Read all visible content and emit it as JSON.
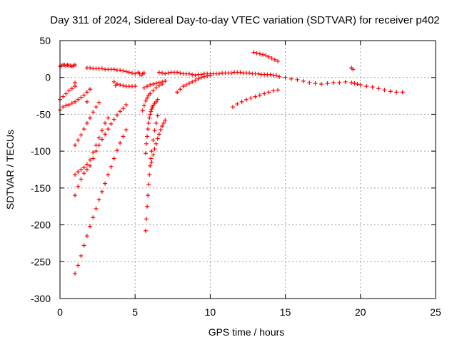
{
  "chart_data": {
    "type": "scatter",
    "title": "Day 311 of 2024, Sidereal Day-to-day VTEC variation (SDTVAR) for receiver p402",
    "xlabel": "GPS time / hours",
    "ylabel": "SDTVAR / TECUs",
    "xlim": [
      0,
      25
    ],
    "ylim": [
      -300,
      50
    ],
    "xticks": [
      0,
      5,
      10,
      15,
      20,
      25
    ],
    "yticks": [
      -300,
      -250,
      -200,
      -150,
      -100,
      -50,
      0,
      50
    ],
    "xtick_labels": [
      "0",
      "5",
      "10",
      "15",
      "20",
      "25"
    ],
    "ytick_labels": [
      "-300",
      "-250",
      "-200",
      "-150",
      "-100",
      "-50",
      "0",
      "50"
    ],
    "grid": true,
    "marker": "+",
    "color": "#ff0000",
    "series": [
      {
        "name": "arc-top-left",
        "x": [
          0.0,
          0.1,
          0.2,
          0.3,
          0.4,
          0.5,
          0.6,
          0.7,
          0.8,
          0.9,
          1.0
        ],
        "y": [
          15,
          16,
          17,
          17,
          16,
          17,
          16,
          16,
          15,
          16,
          17
        ]
      },
      {
        "name": "arc-top-a",
        "x": [
          1.8,
          2.0,
          2.2,
          2.4,
          2.6,
          2.8,
          3.0,
          3.2,
          3.4,
          3.6,
          3.8,
          4.0,
          4.2,
          4.4,
          4.6,
          4.8,
          5.0
        ],
        "y": [
          13,
          13,
          12,
          12,
          12,
          12,
          11,
          11,
          11,
          11,
          10,
          10,
          9,
          8,
          7,
          6,
          5
        ]
      },
      {
        "name": "arc-top-b",
        "x": [
          5.2,
          5.3,
          5.4,
          5.5,
          5.6
        ],
        "y": [
          7,
          5,
          3,
          5,
          6
        ]
      },
      {
        "name": "arc-top-c",
        "x": [
          6.6,
          6.8,
          7.0,
          7.2,
          7.4,
          7.6,
          7.8,
          8.0,
          8.2,
          8.4,
          8.6,
          8.8,
          9.0,
          9.2,
          9.4,
          9.6,
          9.8,
          10.0,
          10.2,
          10.4,
          10.6,
          10.8,
          11.0,
          11.2,
          11.4,
          11.6,
          11.8,
          12.0,
          12.2,
          12.4,
          12.6,
          12.8,
          13.0,
          13.2,
          13.4,
          13.6,
          13.8,
          14.0,
          14.2,
          14.4
        ],
        "y": [
          7,
          6,
          5,
          6,
          7,
          7,
          7,
          6,
          5,
          5,
          5,
          4,
          3,
          4,
          4,
          5,
          5,
          5,
          5,
          5,
          5,
          6,
          6,
          6,
          6,
          7,
          7,
          7,
          6,
          6,
          6,
          5,
          5,
          5,
          4,
          4,
          4,
          4,
          3,
          3
        ]
      },
      {
        "name": "arc-rise-peak",
        "x": [
          12.9,
          13.1,
          13.3,
          13.5,
          13.7,
          13.9,
          14.1,
          14.3,
          14.5
        ],
        "y": [
          34,
          33,
          32,
          31,
          30,
          28,
          26,
          24,
          22
        ]
      },
      {
        "name": "arc-right",
        "x": [
          14.6,
          15.0,
          15.4,
          15.8,
          16.2,
          16.6,
          17.0,
          17.4,
          17.8,
          18.2,
          18.6,
          19.0,
          19.4,
          19.6,
          19.8,
          20.0,
          20.4,
          20.8,
          21.2,
          21.6,
          22.0,
          22.4,
          22.8
        ],
        "y": [
          1,
          0,
          -2,
          -3,
          -5,
          -7,
          -8,
          -9,
          -8,
          -7,
          -7,
          -6,
          -7,
          -8,
          -9,
          -10,
          -12,
          -13,
          -15,
          -17,
          -19,
          -20,
          -20
        ]
      },
      {
        "name": "isolated",
        "x": [
          19.4,
          19.5,
          1.0,
          3.7,
          1.8
        ],
        "y": [
          13,
          11,
          -7,
          -11,
          -33
        ]
      },
      {
        "name": "arc-mid-dip",
        "x": [
          3.6,
          3.8,
          4.0,
          4.2,
          4.4,
          4.6,
          4.8,
          5.0
        ],
        "y": [
          -6,
          -9,
          -10,
          -11,
          -12,
          -12,
          -12,
          -12
        ]
      },
      {
        "name": "arc-mid-a",
        "x": [
          5.6,
          5.8,
          6.0,
          6.2,
          6.4,
          6.6,
          6.8,
          7.0
        ],
        "y": [
          -14,
          -12,
          -10,
          -9,
          -8,
          -7,
          -6,
          -5
        ]
      },
      {
        "name": "arc-mid-b",
        "x": [
          7.8,
          8.0,
          8.2,
          8.4,
          8.6,
          8.8,
          9.0,
          9.2,
          9.4,
          9.6,
          9.8,
          10.0
        ],
        "y": [
          -20,
          -16,
          -12,
          -10,
          -8,
          -6,
          -4,
          -2,
          0,
          1,
          2,
          3
        ]
      },
      {
        "name": "arc-low-a",
        "x": [
          0.0,
          0.2,
          0.4,
          0.6,
          0.8,
          1.0,
          1.2,
          1.4,
          1.6,
          1.8,
          2.0
        ],
        "y": [
          -44,
          -40,
          -38,
          -37,
          -35,
          -33,
          -30,
          -27,
          -24,
          -20,
          -16
        ]
      },
      {
        "name": "arc-low-b",
        "x": [
          0.0,
          0.2,
          0.4,
          0.6,
          0.8,
          1.0
        ],
        "y": [
          -30,
          -26,
          -22,
          -18,
          -15,
          -12
        ]
      },
      {
        "name": "arc-low-c",
        "x": [
          11.5,
          11.8,
          12.1,
          12.4,
          12.7,
          13.0,
          13.3,
          13.6,
          13.9,
          14.2,
          14.5
        ],
        "y": [
          -40,
          -36,
          -33,
          -30,
          -28,
          -26,
          -24,
          -22,
          -20,
          -18,
          -17
        ]
      },
      {
        "name": "arc-steep-1",
        "x": [
          1.0,
          1.2,
          1.4,
          1.6,
          1.8,
          2.0,
          2.2,
          2.4,
          2.6
        ],
        "y": [
          -92,
          -85,
          -78,
          -70,
          -62,
          -55,
          -47,
          -40,
          -34
        ]
      },
      {
        "name": "arc-steep-2",
        "x": [
          1.0,
          1.2,
          1.4,
          1.6,
          1.8,
          2.0,
          2.2,
          2.4,
          2.6,
          2.8,
          3.0,
          3.2,
          3.4,
          3.6,
          3.8,
          4.0,
          4.2,
          4.4
        ],
        "y": [
          -160,
          -148,
          -138,
          -130,
          -125,
          -120,
          -110,
          -100,
          -92,
          -84,
          -77,
          -70,
          -63,
          -57,
          -51,
          -46,
          -42,
          -37
        ]
      },
      {
        "name": "arc-steep-3",
        "x": [
          1.0,
          1.2,
          1.4,
          1.6,
          1.8,
          2.0,
          2.2,
          2.4,
          2.6,
          2.8,
          3.0,
          3.2
        ],
        "y": [
          -132,
          -128,
          -125,
          -122,
          -118,
          -112,
          -102,
          -92,
          -82,
          -72,
          -62,
          -55
        ]
      },
      {
        "name": "arc-steep-4",
        "x": [
          1.0,
          1.2,
          1.4,
          1.6,
          1.8,
          2.0,
          2.2,
          2.4,
          2.6,
          2.8,
          3.0,
          3.2,
          3.4,
          3.6,
          3.8,
          4.0,
          4.2,
          4.4
        ],
        "y": [
          -266,
          -255,
          -242,
          -228,
          -215,
          -202,
          -190,
          -178,
          -166,
          -155,
          -144,
          -132,
          -121,
          -110,
          -99,
          -89,
          -80,
          -71
        ]
      },
      {
        "name": "arc-steep-5",
        "x": [
          5.7,
          5.75,
          5.8,
          5.85,
          5.9,
          5.95,
          6.0,
          6.05,
          6.1,
          6.15,
          6.2,
          6.3,
          6.4,
          6.5
        ],
        "y": [
          -103,
          -90,
          -80,
          -70,
          -62,
          -55,
          -50,
          -46,
          -43,
          -40,
          -38,
          -35,
          -33,
          -30
        ]
      },
      {
        "name": "arc-steep-6",
        "x": [
          5.7,
          5.75,
          5.8,
          5.85,
          5.9,
          5.95,
          6.0,
          6.05,
          6.1,
          6.2,
          6.3,
          6.4,
          6.5
        ],
        "y": [
          -208,
          -192,
          -175,
          -160,
          -145,
          -132,
          -120,
          -110,
          -100,
          -85,
          -72,
          -62,
          -52
        ]
      },
      {
        "name": "arc-steep-7",
        "x": [
          5.5,
          5.6,
          5.7,
          5.8,
          5.9,
          6.0,
          6.2,
          6.4,
          6.6,
          6.8
        ],
        "y": [
          -45,
          -38,
          -32,
          -28,
          -24,
          -22,
          -18,
          -14,
          -11,
          -9
        ]
      },
      {
        "name": "arc-steep-8",
        "x": [
          6.1,
          6.2,
          6.3,
          6.4,
          6.5,
          6.6,
          6.7,
          6.8,
          6.9,
          7.0
        ],
        "y": [
          -115,
          -105,
          -97,
          -90,
          -83,
          -77,
          -71,
          -66,
          -62,
          -58
        ]
      }
    ]
  }
}
